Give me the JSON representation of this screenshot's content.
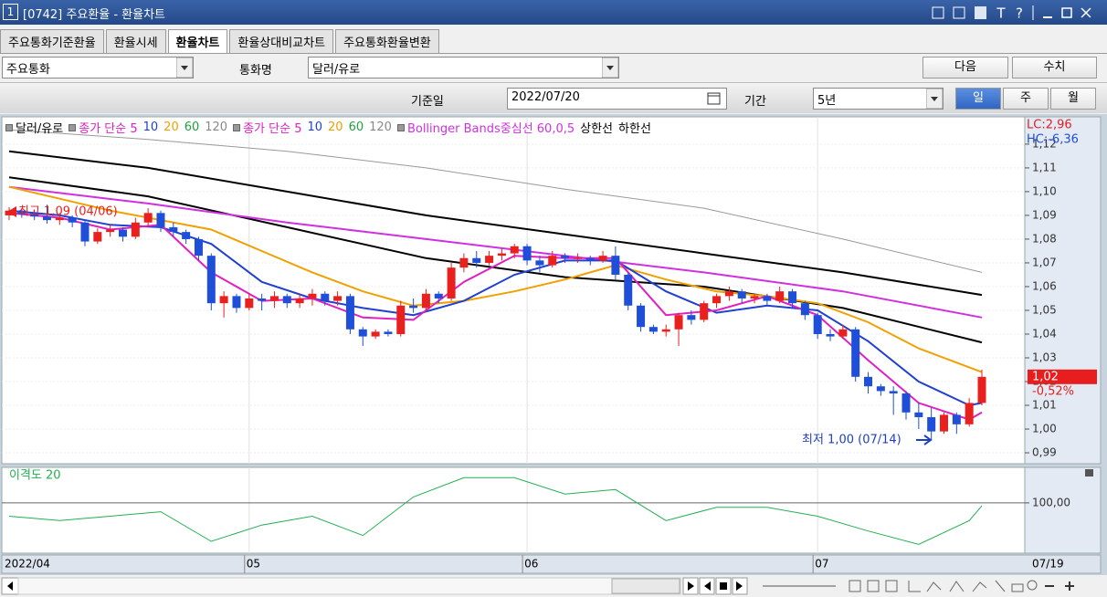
{
  "window": {
    "number": "1",
    "title": "[0742] 주요환율 - 환율차트",
    "controls": [
      "T",
      "?"
    ]
  },
  "tabs": {
    "items": [
      "주요통화기준환율",
      "환율시세",
      "환율차트",
      "환율상대비교차트",
      "주요통화환율변환"
    ],
    "active": 2
  },
  "toolbar": {
    "group": "주요통화",
    "currency_label": "통화명",
    "currency": "달러/유로",
    "next": "다음",
    "values": "수치"
  },
  "date_bar": {
    "base_date_label": "기준일",
    "base_date": "2022/07/20",
    "period_label": "기간",
    "period": "5년",
    "units": [
      "일",
      "주",
      "월"
    ],
    "active_unit": 0
  },
  "legend": [
    {
      "text": "달러/유로",
      "color": "#000000",
      "marker": true
    },
    {
      "text": "종가 단순 5",
      "color": "#e020c0",
      "marker": true
    },
    {
      "text": "10",
      "color": "#2040d0",
      "marker": false
    },
    {
      "text": "20",
      "color": "#f0a000",
      "marker": false
    },
    {
      "text": "60",
      "color": "#20a040",
      "marker": false
    },
    {
      "text": "120",
      "color": "#888888",
      "marker": false
    },
    {
      "text": "종가 단순 5",
      "color": "#e020c0",
      "marker": true
    },
    {
      "text": "10",
      "color": "#2040d0",
      "marker": false
    },
    {
      "text": "20",
      "color": "#f0a000",
      "marker": false
    },
    {
      "text": "60",
      "color": "#20a040",
      "marker": false
    },
    {
      "text": "120",
      "color": "#888888",
      "marker": false
    },
    {
      "text": "Bollinger Bands중심선 60,0,5",
      "color": "#d030e0",
      "marker": true
    },
    {
      "text": "상한선",
      "color": "#000000",
      "marker": false
    },
    {
      "text": "하한선",
      "color": "#000000",
      "marker": false
    }
  ],
  "chart": {
    "type": "candlestick",
    "up_color": "#e8201e",
    "down_color": "#1f4fd8",
    "categories": [
      "2022/04",
      null,
      null,
      null,
      null,
      null,
      null,
      null,
      null,
      null,
      null,
      null,
      null,
      null,
      null,
      null,
      null,
      null,
      null,
      "05",
      null,
      null,
      null,
      null,
      null,
      null,
      null,
      null,
      null,
      null,
      null,
      null,
      null,
      null,
      null,
      null,
      null,
      null,
      null,
      null,
      null,
      "06",
      null,
      null,
      null,
      null,
      null,
      null,
      null,
      null,
      null,
      null,
      null,
      null,
      null,
      null,
      null,
      null,
      null,
      null,
      null,
      null,
      null,
      null,
      "07",
      null,
      null,
      null,
      null,
      null,
      null,
      null,
      null,
      null,
      null,
      null,
      null,
      null
    ],
    "candles": [
      [
        1.09,
        1.0935,
        1.088,
        1.092
      ],
      [
        1.092,
        1.093,
        1.089,
        1.0905
      ],
      [
        1.0905,
        1.0925,
        1.088,
        1.0895
      ],
      [
        1.0895,
        1.0945,
        1.0865,
        1.088
      ],
      [
        1.088,
        1.091,
        1.086,
        1.089
      ],
      [
        1.089,
        1.09,
        1.085,
        1.087
      ],
      [
        1.087,
        1.088,
        1.077,
        1.079
      ],
      [
        1.079,
        1.0845,
        1.078,
        1.083
      ],
      [
        1.083,
        1.086,
        1.081,
        1.084
      ],
      [
        1.084,
        1.085,
        1.079,
        1.081
      ],
      [
        1.081,
        1.089,
        1.08,
        1.087
      ],
      [
        1.087,
        1.093,
        1.085,
        1.091
      ],
      [
        1.091,
        1.092,
        1.083,
        1.085
      ],
      [
        1.085,
        1.087,
        1.081,
        1.083
      ],
      [
        1.083,
        1.084,
        1.078,
        1.08
      ],
      [
        1.08,
        1.081,
        1.071,
        1.073
      ],
      [
        1.073,
        1.074,
        1.05,
        1.053
      ],
      [
        1.053,
        1.058,
        1.047,
        1.056
      ],
      [
        1.056,
        1.057,
        1.049,
        1.051
      ],
      [
        1.051,
        1.057,
        1.05,
        1.055
      ],
      [
        1.055,
        1.057,
        1.05,
        1.054
      ],
      [
        1.054,
        1.058,
        1.051,
        1.056
      ],
      [
        1.056,
        1.057,
        1.051,
        1.053
      ],
      [
        1.053,
        1.057,
        1.051,
        1.055
      ],
      [
        1.055,
        1.059,
        1.052,
        1.057
      ],
      [
        1.057,
        1.058,
        1.052,
        1.054
      ],
      [
        1.054,
        1.058,
        1.052,
        1.056
      ],
      [
        1.056,
        1.057,
        1.04,
        1.042
      ],
      [
        1.042,
        1.043,
        1.035,
        1.039
      ],
      [
        1.039,
        1.042,
        1.038,
        1.041
      ],
      [
        1.041,
        1.042,
        1.039,
        1.04
      ],
      [
        1.04,
        1.054,
        1.039,
        1.052
      ],
      [
        1.052,
        1.055,
        1.049,
        1.051
      ],
      [
        1.051,
        1.059,
        1.05,
        1.057
      ],
      [
        1.057,
        1.058,
        1.053,
        1.055
      ],
      [
        1.055,
        1.07,
        1.054,
        1.068
      ],
      [
        1.068,
        1.074,
        1.066,
        1.072
      ],
      [
        1.072,
        1.075,
        1.068,
        1.07
      ],
      [
        1.07,
        1.075,
        1.069,
        1.073
      ],
      [
        1.073,
        1.076,
        1.071,
        1.074
      ],
      [
        1.074,
        1.078,
        1.072,
        1.077
      ],
      [
        1.077,
        1.078,
        1.069,
        1.071
      ],
      [
        1.071,
        1.073,
        1.066,
        1.069
      ],
      [
        1.069,
        1.075,
        1.068,
        1.073
      ],
      [
        1.073,
        1.074,
        1.07,
        1.072
      ],
      [
        1.072,
        1.074,
        1.07,
        1.072
      ],
      [
        1.072,
        1.073,
        1.069,
        1.071
      ],
      [
        1.071,
        1.075,
        1.07,
        1.073
      ],
      [
        1.073,
        1.077,
        1.063,
        1.065
      ],
      [
        1.065,
        1.066,
        1.05,
        1.052
      ],
      [
        1.052,
        1.053,
        1.041,
        1.043
      ],
      [
        1.043,
        1.044,
        1.04,
        1.041
      ],
      [
        1.041,
        1.044,
        1.039,
        1.042
      ],
      [
        1.042,
        1.049,
        1.035,
        1.048
      ],
      [
        1.048,
        1.05,
        1.044,
        1.046
      ],
      [
        1.046,
        1.054,
        1.045,
        1.053
      ],
      [
        1.053,
        1.057,
        1.051,
        1.056
      ],
      [
        1.056,
        1.06,
        1.054,
        1.058
      ],
      [
        1.058,
        1.059,
        1.053,
        1.055
      ],
      [
        1.055,
        1.057,
        1.053,
        1.056
      ],
      [
        1.056,
        1.057,
        1.052,
        1.054
      ],
      [
        1.054,
        1.06,
        1.053,
        1.058
      ],
      [
        1.058,
        1.059,
        1.051,
        1.053
      ],
      [
        1.053,
        1.054,
        1.046,
        1.048
      ],
      [
        1.048,
        1.049,
        1.038,
        1.04
      ],
      [
        1.04,
        1.042,
        1.037,
        1.039
      ],
      [
        1.039,
        1.044,
        1.038,
        1.042
      ],
      [
        1.042,
        1.043,
        1.02,
        1.022
      ],
      [
        1.022,
        1.024,
        1.015,
        1.018
      ],
      [
        1.018,
        1.019,
        1.014,
        1.016
      ],
      [
        1.016,
        1.018,
        1.006,
        1.015
      ],
      [
        1.015,
        1.016,
        1.004,
        1.007
      ],
      [
        1.007,
        1.011,
        1.0,
        1.005
      ],
      [
        1.005,
        1.009,
        0.9955,
        0.999
      ],
      [
        0.999,
        1.007,
        0.998,
        1.006
      ],
      [
        1.006,
        1.007,
        0.998,
        1.002
      ],
      [
        1.002,
        1.013,
        1.001,
        1.011
      ],
      [
        1.011,
        1.025,
        1.01,
        1.022
      ]
    ],
    "lines": [
      {
        "color": "#999999",
        "width": 1,
        "x": [
          0,
          11,
          22,
          33,
          44,
          55,
          66,
          77
        ],
        "values": [
          1.126,
          1.122,
          1.117,
          1.11,
          1.101,
          1.093,
          1.08,
          1.066
        ]
      },
      {
        "color": "#000000",
        "width": 2,
        "x": [
          0,
          11,
          22,
          33,
          44,
          55,
          66,
          77
        ],
        "values": [
          1.117,
          1.11,
          1.1,
          1.09,
          1.082,
          1.074,
          1.066,
          1.0565
        ]
      },
      {
        "color": "#000000",
        "width": 2,
        "x": [
          0,
          11,
          22,
          33,
          44,
          55,
          66,
          77
        ],
        "values": [
          1.106,
          1.098,
          1.085,
          1.072,
          1.064,
          1.06,
          1.051,
          1.0365
        ]
      },
      {
        "color": "#d030e0",
        "width": 2,
        "x": [
          0,
          11,
          22,
          33,
          44,
          55,
          66,
          77
        ],
        "values": [
          1.102,
          1.095,
          1.087,
          1.08,
          1.073,
          1.066,
          1.058,
          1.047
        ]
      },
      {
        "color": "#f0a000",
        "width": 2,
        "x": [
          0,
          4,
          8,
          12,
          16,
          20,
          24,
          28,
          32,
          36,
          40,
          44,
          48,
          52,
          56,
          60,
          64,
          68,
          72,
          76,
          77
        ],
        "values": [
          1.102,
          1.097,
          1.092,
          1.088,
          1.084,
          1.075,
          1.066,
          1.058,
          1.052,
          1.054,
          1.058,
          1.063,
          1.069,
          1.063,
          1.058,
          1.056,
          1.053,
          1.045,
          1.034,
          1.026,
          1.024
        ]
      },
      {
        "color": "#2040d0",
        "width": 2,
        "x": [
          0,
          4,
          8,
          12,
          16,
          20,
          24,
          28,
          32,
          36,
          40,
          44,
          48,
          52,
          56,
          60,
          64,
          68,
          72,
          76,
          77
        ],
        "values": [
          1.092,
          1.09,
          1.086,
          1.085,
          1.078,
          1.062,
          1.055,
          1.051,
          1.048,
          1.054,
          1.065,
          1.071,
          1.071,
          1.058,
          1.049,
          1.052,
          1.05,
          1.037,
          1.02,
          1.01,
          1.011
        ]
      },
      {
        "color": "#e020c0",
        "width": 2,
        "x": [
          0,
          4,
          8,
          12,
          16,
          20,
          24,
          28,
          32,
          36,
          40,
          44,
          48,
          52,
          56,
          60,
          64,
          68,
          72,
          76,
          77
        ],
        "values": [
          1.091,
          1.089,
          1.084,
          1.086,
          1.066,
          1.054,
          1.055,
          1.047,
          1.046,
          1.062,
          1.073,
          1.072,
          1.072,
          1.048,
          1.05,
          1.056,
          1.048,
          1.029,
          1.011,
          1.004,
          1.007
        ]
      }
    ],
    "ylim": [
      0.9854,
      1.1315
    ],
    "yticks": [
      {
        "value": 0.99,
        "label": "0,99"
      },
      {
        "value": 1.0,
        "label": "1,00"
      },
      {
        "value": 1.01,
        "label": "1,01"
      },
      {
        "value": 1.02,
        "label": "1,02"
      },
      {
        "value": 1.03,
        "label": "1,03"
      },
      {
        "value": 1.04,
        "label": "1,04"
      },
      {
        "value": 1.05,
        "label": "1,05"
      },
      {
        "value": 1.06,
        "label": "1,06"
      },
      {
        "value": 1.07,
        "label": "1,07"
      },
      {
        "value": 1.08,
        "label": "1,08"
      },
      {
        "value": 1.09,
        "label": "1,09"
      },
      {
        "value": 1.1,
        "label": "1,10"
      },
      {
        "value": 1.11,
        "label": "1,11"
      },
      {
        "value": 1.12,
        "label": "1,12"
      }
    ],
    "lc_label": "LC:2,96",
    "hc_label": "HC:-6,36",
    "price_label": "1,02",
    "change_label": "-0,52%",
    "high_note": "최고 1,09 (04/06)",
    "low_note": "최저 1,00 (07/14)",
    "cursor_date": "07/19",
    "osc": {
      "title": "이격도 20",
      "color": "#20b050",
      "x": [
        0,
        4,
        8,
        12,
        16,
        20,
        24,
        28,
        32,
        36,
        40,
        44,
        48,
        52,
        56,
        60,
        64,
        68,
        72,
        76,
        77
      ],
      "values": [
        99.1,
        98.8,
        99.1,
        99.4,
        97.4,
        98.5,
        99.1,
        97.8,
        100.4,
        101.7,
        101.7,
        100.6,
        100.9,
        98.8,
        99.7,
        99.7,
        99.1,
        98.1,
        97.2,
        98.8,
        99.8
      ],
      "ylim": [
        96.6,
        102.4
      ],
      "yticks": [
        {
          "value": 100,
          "label": "100,00"
        }
      ]
    }
  }
}
